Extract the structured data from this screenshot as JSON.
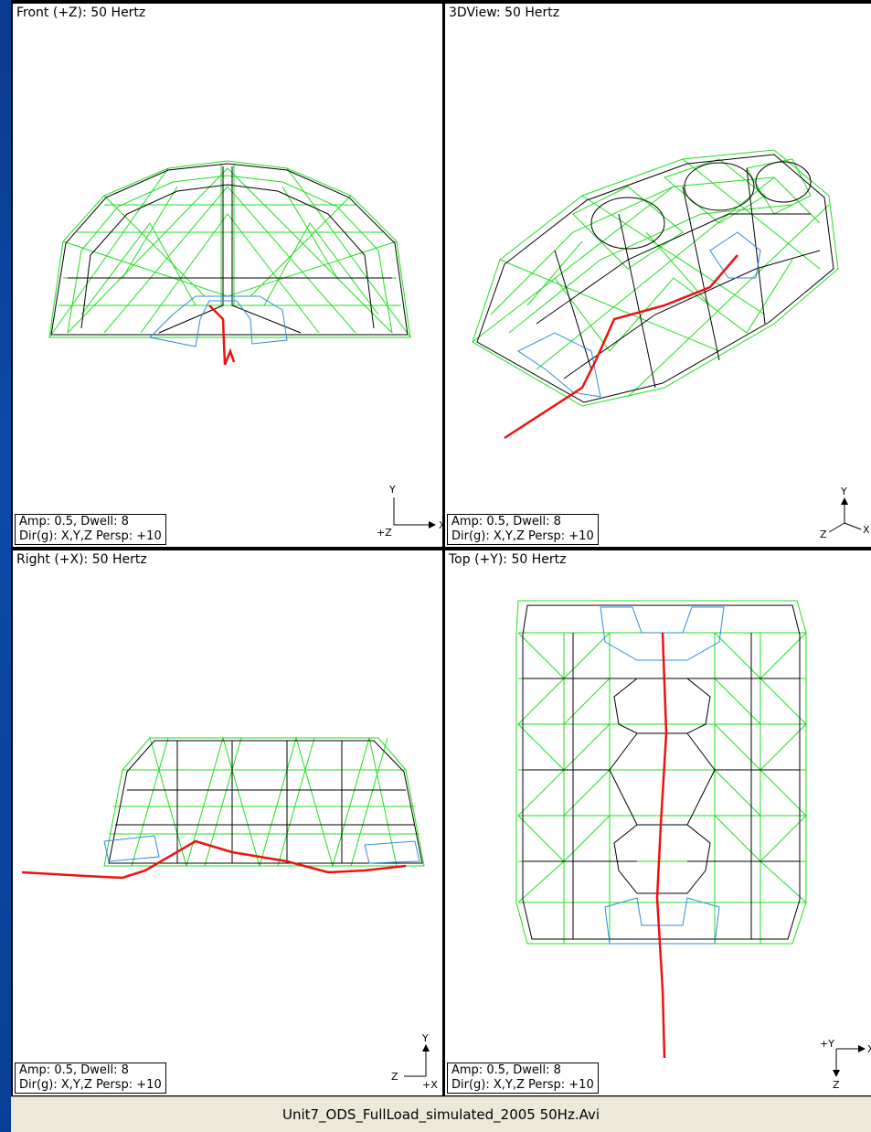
{
  "viewports": [
    {
      "id": "front",
      "title": "Front (+Z): 50 Hertz",
      "amp": "Amp: 0.5,  Dwell: 8",
      "dir": "Dir(g): X,Y,Z Persp: +10",
      "axes": {
        "up": "Y",
        "right": "X",
        "origin": "+Z"
      }
    },
    {
      "id": "3d",
      "title": "3DView: 50 Hertz",
      "amp": "Amp: 0.5,  Dwell: 8",
      "dir": "Dir(g): X,Y,Z Persp: +10",
      "axes": {
        "up": "Y",
        "right": "X",
        "left": "Z"
      }
    },
    {
      "id": "right",
      "title": "Right (+X): 50 Hertz",
      "amp": "Amp: 0.5,  Dwell: 8",
      "dir": "Dir(g): X,Y,Z Persp: +10",
      "axes": {
        "up": "Y",
        "left": "Z",
        "origin": "+X"
      }
    },
    {
      "id": "top",
      "title": "Top (+Y): 50 Hertz",
      "amp": "Amp: 0.5,  Dwell: 8",
      "dir": "Dir(g): X,Y,Z Persp: +10",
      "axes": {
        "right": "X",
        "down": "Z",
        "origin": "+Y"
      }
    }
  ],
  "status": {
    "filename": "Unit7_ODS_FullLoad_simulated_2005 50Hz.Avi"
  },
  "colors": {
    "mesh_green": "#22dd22",
    "mesh_black": "#000000",
    "mesh_blue": "#3388dd",
    "path_red": "#ee1111"
  }
}
